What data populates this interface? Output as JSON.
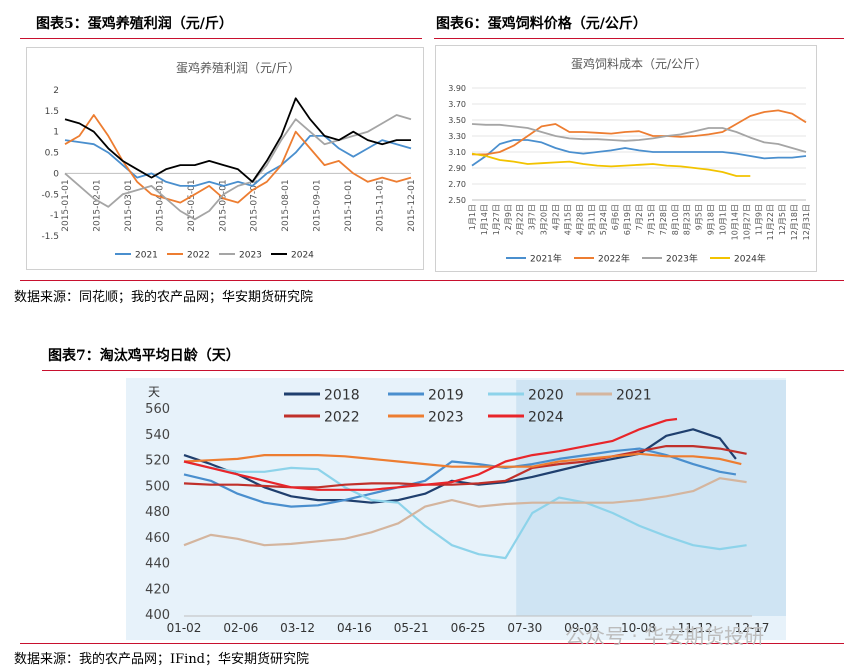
{
  "page": {
    "fig5_title": "图表5：蛋鸡养殖利润（元/斤）",
    "fig6_title": "图表6：蛋鸡饲料价格（元/公斤）",
    "fig7_title": "图表7：淘汰鸡平均日龄（天）",
    "source_top": "数据来源：同花顺；我的农产品网；华安期货研究院",
    "source_bottom": "数据来源：我的农产品网；IFind；华安期货研究院",
    "watermark": "公众号 · 华安期货投研",
    "accent_color": "#c8102e"
  },
  "chart_data": [
    {
      "id": "fig5",
      "type": "line",
      "title": "蛋鸡养殖利润（元/斤）",
      "ylim": [
        -1.5,
        2
      ],
      "yticks": [
        "2",
        "1.5",
        "1",
        "0.5",
        "0",
        "-0.5",
        "-1",
        "-1.5"
      ],
      "xticks": [
        "2015-01-01",
        "2015-02-01",
        "2015-03-01",
        "2015-04-01",
        "2015-05-01",
        "2015-06-01",
        "2015-07-01",
        "2015-08-01",
        "2015-09-01",
        "2015-10-01",
        "2015-11-01",
        "2015-12-01"
      ],
      "x_domain": [
        0,
        12
      ],
      "grid": false,
      "legend": "bottom",
      "series": [
        {
          "name": "2021",
          "color": "#4a8fce",
          "x": [
            0,
            0.5,
            1,
            1.5,
            2,
            2.5,
            3,
            3.5,
            4,
            4.5,
            5,
            5.5,
            6,
            6.5,
            7,
            7.5,
            8,
            8.5,
            9,
            9.5,
            10,
            10.5,
            11,
            11.5,
            12
          ],
          "values": [
            0.8,
            0.75,
            0.7,
            0.5,
            0.2,
            -0.1,
            0.0,
            -0.2,
            -0.3,
            -0.3,
            -0.2,
            -0.3,
            -0.2,
            -0.3,
            0.0,
            0.2,
            0.5,
            0.9,
            0.9,
            0.6,
            0.4,
            0.6,
            0.8,
            0.7,
            0.6
          ]
        },
        {
          "name": "2022",
          "color": "#ed7d31",
          "x": [
            0,
            0.5,
            1,
            1.5,
            2,
            2.5,
            3,
            3.5,
            4,
            4.5,
            5,
            5.5,
            6,
            6.5,
            7,
            7.5,
            8,
            8.5,
            9,
            9.5,
            10,
            10.5,
            11,
            11.5,
            12
          ],
          "values": [
            0.7,
            0.9,
            1.4,
            0.9,
            0.3,
            -0.2,
            -0.5,
            -0.6,
            -0.7,
            -0.5,
            -0.3,
            -0.6,
            -0.7,
            -0.4,
            -0.2,
            0.2,
            1.0,
            0.6,
            0.2,
            0.3,
            0.0,
            -0.2,
            -0.1,
            -0.2,
            -0.1
          ]
        },
        {
          "name": "2023",
          "color": "#a5a5a5",
          "x": [
            0,
            0.5,
            1,
            1.5,
            2,
            2.5,
            3,
            3.5,
            4,
            4.5,
            5,
            5.5,
            6,
            6.5,
            7,
            7.5,
            8,
            8.5,
            9,
            9.5,
            10,
            10.5,
            11,
            11.5,
            12
          ],
          "values": [
            0.0,
            -0.3,
            -0.6,
            -0.8,
            -0.5,
            -0.4,
            -0.3,
            -0.6,
            -0.9,
            -1.1,
            -0.9,
            -0.5,
            -0.3,
            -0.2,
            0.2,
            0.8,
            1.3,
            1.0,
            0.7,
            0.8,
            0.9,
            1.0,
            1.2,
            1.4,
            1.3
          ]
        },
        {
          "name": "2024",
          "color": "#000000",
          "x": [
            0,
            0.5,
            1,
            1.5,
            2,
            2.5,
            3,
            3.5,
            4,
            4.5,
            5,
            5.5,
            6,
            6.5,
            7,
            7.5,
            8,
            8.5,
            9,
            9.5,
            10,
            10.5,
            11,
            11.5,
            12
          ],
          "values": [
            1.3,
            1.2,
            1.0,
            0.6,
            0.3,
            0.1,
            -0.1,
            0.1,
            0.2,
            0.2,
            0.3,
            0.2,
            0.1,
            -0.2,
            0.3,
            0.9,
            1.8,
            1.3,
            0.9,
            0.8,
            1.0,
            0.8,
            0.7,
            0.8,
            0.8
          ]
        }
      ]
    },
    {
      "id": "fig6",
      "type": "line",
      "title": "蛋鸡饲料成本（元/公斤）",
      "ylim": [
        2.5,
        3.9
      ],
      "yticks": [
        "3.90",
        "3.70",
        "3.50",
        "3.30",
        "3.10",
        "2.90",
        "2.70",
        "2.50"
      ],
      "xticks": [
        "1月1日",
        "1月14日",
        "1月27日",
        "2月9日",
        "2月22日",
        "3月7日",
        "3月20日",
        "4月2日",
        "4月15日",
        "4月28日",
        "5月11日",
        "5月24日",
        "6月6日",
        "6月19日",
        "7月2日",
        "7月15日",
        "7月28日",
        "8月10日",
        "8月23日",
        "9月5日",
        "9月18日",
        "10月1日",
        "10月14日",
        "10月27日",
        "11月9日",
        "11月22日",
        "12月5日",
        "12月18日",
        "12月31日"
      ],
      "x_domain": [
        0,
        12
      ],
      "grid": true,
      "legend": "bottom",
      "series": [
        {
          "name": "2021年",
          "color": "#4a8fce",
          "x": [
            0,
            0.5,
            1,
            1.5,
            2,
            2.5,
            3,
            3.5,
            4,
            4.5,
            5,
            5.5,
            6,
            6.5,
            7,
            7.5,
            8,
            8.5,
            9,
            9.5,
            10,
            10.5,
            11,
            11.5,
            12
          ],
          "values": [
            2.93,
            3.05,
            3.2,
            3.25,
            3.25,
            3.22,
            3.15,
            3.1,
            3.08,
            3.1,
            3.12,
            3.15,
            3.12,
            3.1,
            3.1,
            3.1,
            3.1,
            3.1,
            3.1,
            3.08,
            3.05,
            3.02,
            3.03,
            3.03,
            3.05
          ]
        },
        {
          "name": "2022年",
          "color": "#ed7d31",
          "x": [
            0,
            0.5,
            1,
            1.5,
            2,
            2.5,
            3,
            3.5,
            4,
            4.5,
            5,
            5.5,
            6,
            6.5,
            7,
            7.5,
            8,
            8.5,
            9,
            9.5,
            10,
            10.5,
            11,
            11.5,
            12
          ],
          "values": [
            3.07,
            3.07,
            3.1,
            3.18,
            3.3,
            3.42,
            3.45,
            3.35,
            3.35,
            3.34,
            3.33,
            3.35,
            3.36,
            3.3,
            3.3,
            3.29,
            3.3,
            3.32,
            3.35,
            3.45,
            3.55,
            3.6,
            3.62,
            3.58,
            3.47
          ]
        },
        {
          "name": "2023年",
          "color": "#a5a5a5",
          "x": [
            0,
            0.5,
            1,
            1.5,
            2,
            2.5,
            3,
            3.5,
            4,
            4.5,
            5,
            5.5,
            6,
            6.5,
            7,
            7.5,
            8,
            8.5,
            9,
            9.5,
            10,
            10.5,
            11,
            11.5,
            12
          ],
          "values": [
            3.45,
            3.44,
            3.44,
            3.42,
            3.4,
            3.35,
            3.3,
            3.27,
            3.26,
            3.26,
            3.25,
            3.24,
            3.25,
            3.27,
            3.3,
            3.32,
            3.36,
            3.4,
            3.4,
            3.35,
            3.28,
            3.22,
            3.2,
            3.15,
            3.1
          ]
        },
        {
          "name": "2024年",
          "color": "#f2c300",
          "x": [
            0,
            0.5,
            1,
            1.5,
            2,
            2.5,
            3,
            3.5,
            4,
            4.5,
            5,
            5.5,
            6,
            6.5,
            7,
            7.5,
            8,
            8.5,
            9,
            9.5,
            10
          ],
          "values": [
            3.08,
            3.05,
            3.0,
            2.98,
            2.95,
            2.96,
            2.97,
            2.98,
            2.95,
            2.93,
            2.92,
            2.93,
            2.94,
            2.95,
            2.93,
            2.92,
            2.9,
            2.88,
            2.85,
            2.8,
            2.8
          ]
        }
      ]
    },
    {
      "id": "fig7",
      "type": "line",
      "title": "淘汰鸡平均日龄（天）",
      "unit": "天",
      "ylim": [
        400,
        560
      ],
      "yticks": [
        "560",
        "540",
        "520",
        "500",
        "480",
        "460",
        "440",
        "420",
        "400"
      ],
      "xticks": [
        "01-02",
        "02-06",
        "03-12",
        "04-16",
        "05-21",
        "06-25",
        "07-30",
        "09-03",
        "10-08",
        "11-12",
        "12-17"
      ],
      "x_domain": [
        0,
        10.6
      ],
      "grid": false,
      "legend": "top",
      "series": [
        {
          "name": "2018",
          "color": "#1f3f6e",
          "x": [
            0,
            0.5,
            1,
            1.5,
            2,
            2.5,
            3,
            3.5,
            4,
            4.5,
            5,
            5.5,
            6,
            6.5,
            7,
            7.5,
            8,
            8.5,
            9,
            9.5,
            10,
            10.3
          ],
          "values": [
            525,
            518,
            510,
            500,
            493,
            490,
            490,
            488,
            490,
            495,
            505,
            502,
            504,
            508,
            513,
            518,
            522,
            526,
            540,
            545,
            538,
            522
          ]
        },
        {
          "name": "2019",
          "color": "#4a8fce",
          "x": [
            0,
            0.5,
            1,
            1.5,
            2,
            2.5,
            3,
            3.5,
            4,
            4.5,
            5,
            5.5,
            6,
            6.5,
            7,
            7.5,
            8,
            8.5,
            9,
            9.5,
            10,
            10.3
          ],
          "values": [
            510,
            505,
            495,
            488,
            485,
            486,
            490,
            495,
            500,
            505,
            520,
            518,
            515,
            518,
            522,
            525,
            528,
            530,
            525,
            518,
            512,
            510
          ]
        },
        {
          "name": "2020",
          "color": "#8dd3ea",
          "x": [
            0,
            0.5,
            1,
            1.5,
            2,
            2.5,
            3,
            3.5,
            4,
            4.5,
            5,
            5.5,
            6,
            6.5,
            7,
            7.5,
            8,
            8.5,
            9,
            9.5,
            10,
            10.5
          ],
          "values": [
            520,
            515,
            512,
            512,
            515,
            514,
            500,
            490,
            488,
            470,
            455,
            448,
            445,
            480,
            492,
            488,
            480,
            470,
            462,
            455,
            452,
            455
          ]
        },
        {
          "name": "2021",
          "color": "#d4b59e",
          "x": [
            0,
            0.5,
            1,
            1.5,
            2,
            2.5,
            3,
            3.5,
            4,
            4.5,
            5,
            5.5,
            6,
            6.5,
            7,
            7.5,
            8,
            8.5,
            9,
            9.5,
            10,
            10.5
          ],
          "values": [
            455,
            463,
            460,
            455,
            456,
            458,
            460,
            465,
            472,
            485,
            490,
            485,
            487,
            488,
            488,
            488,
            488,
            490,
            493,
            497,
            507,
            504
          ]
        },
        {
          "name": "2022",
          "color": "#c0302a",
          "x": [
            0,
            0.5,
            1,
            1.5,
            2,
            2.5,
            3,
            3.5,
            4,
            4.5,
            5,
            5.5,
            6,
            6.5,
            7,
            7.5,
            8,
            8.5,
            9,
            9.5,
            10,
            10.5
          ],
          "values": [
            503,
            502,
            502,
            501,
            500,
            500,
            502,
            503,
            503,
            502,
            502,
            503,
            505,
            515,
            518,
            520,
            524,
            528,
            532,
            532,
            530,
            526
          ]
        },
        {
          "name": "2023",
          "color": "#ed7d31",
          "x": [
            0,
            0.5,
            1,
            1.5,
            2,
            2.5,
            3,
            3.5,
            4,
            4.5,
            5,
            5.5,
            6,
            6.5,
            7,
            7.5,
            8,
            8.5,
            9,
            9.5,
            10,
            10.4
          ],
          "values": [
            520,
            521,
            522,
            525,
            525,
            525,
            524,
            522,
            520,
            518,
            516,
            516,
            516,
            516,
            520,
            522,
            524,
            526,
            524,
            524,
            522,
            518
          ]
        },
        {
          "name": "2024",
          "color": "#e8252a",
          "x": [
            0,
            0.5,
            1,
            1.5,
            2,
            2.5,
            3,
            3.5,
            4,
            4.5,
            5,
            5.5,
            6,
            6.5,
            7,
            7.5,
            8,
            8.5,
            9,
            9.2
          ],
          "values": [
            520,
            515,
            510,
            505,
            500,
            498,
            498,
            498,
            500,
            502,
            504,
            510,
            520,
            525,
            528,
            532,
            536,
            545,
            552,
            553
          ]
        }
      ]
    }
  ]
}
